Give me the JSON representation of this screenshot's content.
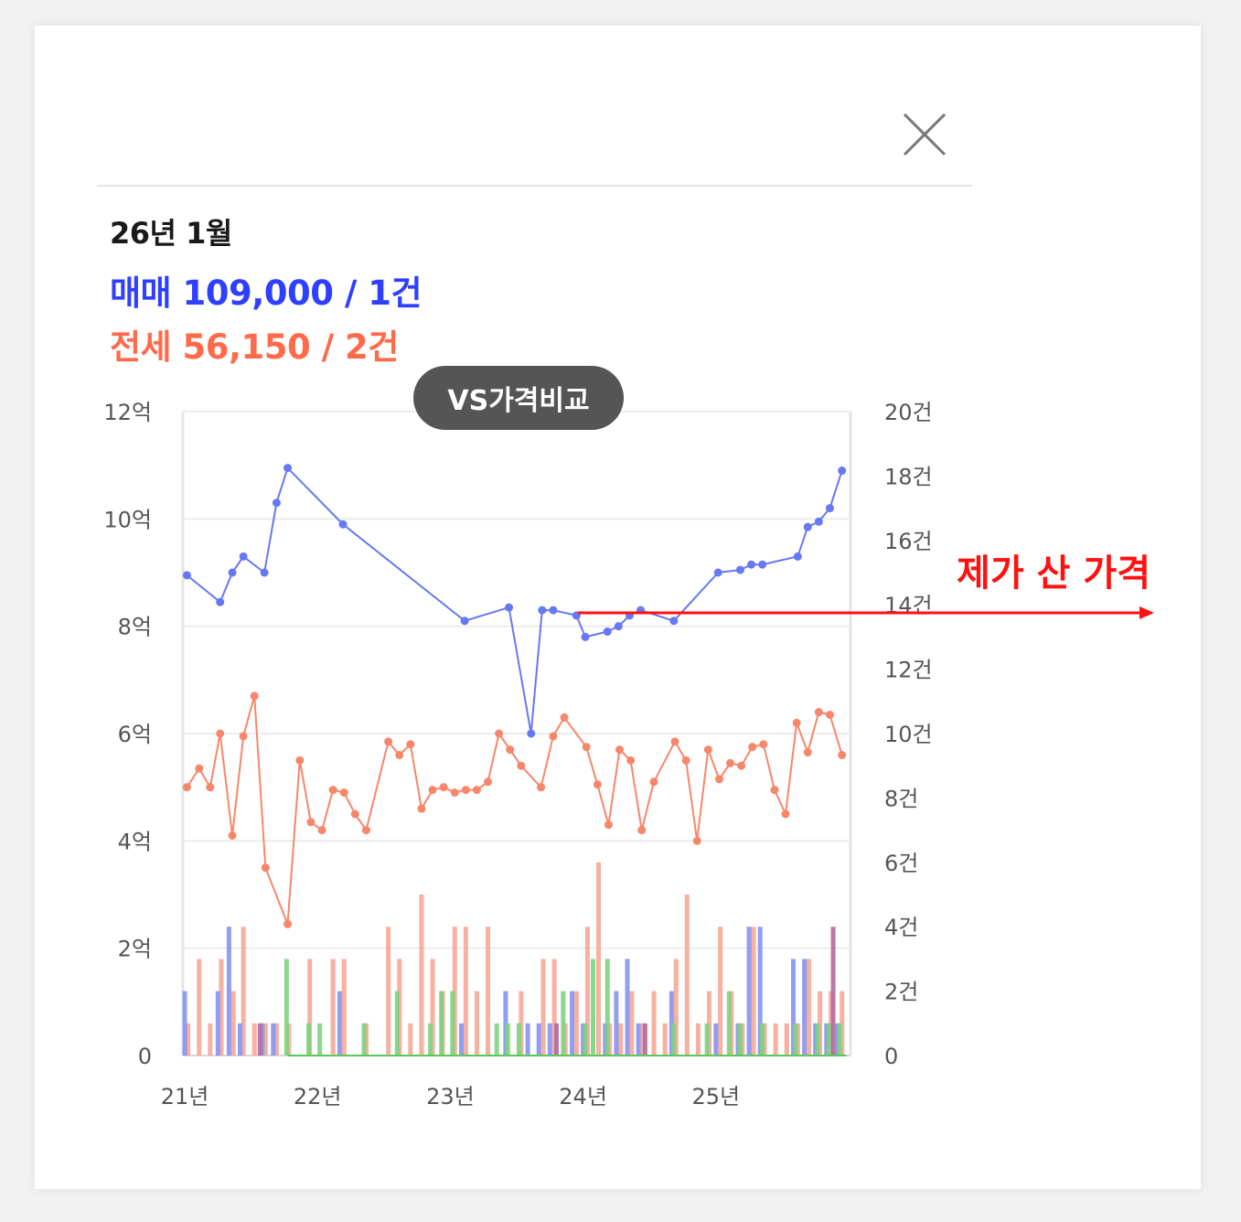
{
  "header": {
    "close_icon": "close-icon"
  },
  "summary": {
    "period": "26년 1월",
    "sale": "매매 109,000 / 1건",
    "jeonse": "전세 56,150 / 2건",
    "sale_color": "#2f3fff",
    "jeonse_color": "#ff6a4a"
  },
  "compare_button": {
    "label": "VS가격비교"
  },
  "annotation": {
    "label": "제가 산 가격",
    "color": "#ff1111",
    "price": 8.25
  },
  "chart_data": {
    "type": "line",
    "y_left": {
      "ticks": [
        "0",
        "2억",
        "4억",
        "6억",
        "8억",
        "10억",
        "12억"
      ],
      "range": [
        0,
        12
      ]
    },
    "y_right": {
      "ticks": [
        "0",
        "2건",
        "4건",
        "6건",
        "8건",
        "10건",
        "12건",
        "14건",
        "16건",
        "18건",
        "20건"
      ],
      "range": [
        0,
        20
      ]
    },
    "x_labels": [
      {
        "t": 0,
        "label": "21년"
      },
      {
        "t": 12,
        "label": "22년"
      },
      {
        "t": 24,
        "label": "23년"
      },
      {
        "t": 36,
        "label": "24년"
      },
      {
        "t": 48,
        "label": "25년"
      }
    ],
    "x_range": [
      0,
      60
    ],
    "grid": true,
    "series": [
      {
        "color": "#6678f5",
        "points": [
          [
            0.2,
            8.95
          ],
          [
            3.2,
            8.45
          ],
          [
            4.3,
            9.0
          ],
          [
            5.3,
            9.3
          ],
          [
            7.2,
            9.0
          ],
          [
            8.3,
            10.3
          ],
          [
            9.3,
            10.95
          ],
          [
            14.3,
            9.9
          ],
          [
            25.3,
            8.1
          ],
          [
            29.3,
            8.35
          ],
          [
            31.3,
            6.0
          ],
          [
            32.3,
            8.3
          ],
          [
            33.3,
            8.3
          ],
          [
            35.4,
            8.2
          ],
          [
            36.2,
            7.8
          ],
          [
            38.2,
            7.9
          ],
          [
            39.2,
            8.0
          ],
          [
            40.2,
            8.2
          ],
          [
            41.2,
            8.3
          ],
          [
            44.2,
            8.1
          ],
          [
            48.2,
            9.0
          ],
          [
            50.2,
            9.05
          ],
          [
            51.2,
            9.15
          ],
          [
            52.2,
            9.15
          ],
          [
            55.4,
            9.3
          ],
          [
            56.3,
            9.85
          ],
          [
            57.3,
            9.95
          ],
          [
            58.3,
            10.2
          ],
          [
            59.4,
            10.9
          ]
        ]
      },
      {
        "color": "#f7866a",
        "points": [
          [
            0.2,
            5.0
          ],
          [
            1.3,
            5.35
          ],
          [
            2.3,
            5.0
          ],
          [
            3.2,
            6.0
          ],
          [
            4.3,
            4.1
          ],
          [
            5.3,
            5.95
          ],
          [
            6.3,
            6.7
          ],
          [
            7.3,
            3.5
          ],
          [
            9.3,
            2.45
          ],
          [
            10.4,
            5.5
          ],
          [
            11.4,
            4.35
          ],
          [
            12.4,
            4.2
          ],
          [
            13.4,
            4.95
          ],
          [
            14.4,
            4.9
          ],
          [
            15.4,
            4.5
          ],
          [
            16.4,
            4.2
          ],
          [
            18.4,
            5.85
          ],
          [
            19.4,
            5.6
          ],
          [
            20.4,
            5.8
          ],
          [
            21.4,
            4.6
          ],
          [
            22.4,
            4.95
          ],
          [
            23.4,
            5.0
          ],
          [
            24.4,
            4.9
          ],
          [
            25.4,
            4.95
          ],
          [
            26.4,
            4.95
          ],
          [
            27.4,
            5.1
          ],
          [
            28.4,
            6.0
          ],
          [
            29.4,
            5.7
          ],
          [
            30.4,
            5.4
          ],
          [
            32.2,
            5.0
          ],
          [
            33.3,
            5.95
          ],
          [
            34.3,
            6.3
          ],
          [
            36.3,
            5.75
          ],
          [
            37.3,
            5.05
          ],
          [
            38.3,
            4.3
          ],
          [
            39.3,
            5.7
          ],
          [
            40.3,
            5.5
          ],
          [
            41.3,
            4.2
          ],
          [
            42.4,
            5.1
          ],
          [
            44.3,
            5.85
          ],
          [
            45.3,
            5.5
          ],
          [
            46.3,
            4.0
          ],
          [
            47.3,
            5.7
          ],
          [
            48.3,
            5.15
          ],
          [
            49.3,
            5.45
          ],
          [
            50.3,
            5.4
          ],
          [
            51.3,
            5.75
          ],
          [
            52.3,
            5.8
          ],
          [
            53.3,
            4.95
          ],
          [
            54.3,
            4.5
          ],
          [
            55.3,
            6.2
          ],
          [
            56.3,
            5.65
          ],
          [
            57.3,
            6.4
          ],
          [
            58.3,
            6.35
          ],
          [
            59.4,
            5.6
          ]
        ]
      },
      {
        "color": "#55cc55",
        "points": [
          [
            9.3,
            0
          ],
          [
            59.8,
            0
          ]
        ]
      }
    ],
    "bars": [
      {
        "color": "#f7a796",
        "values": [
          [
            0.3,
            1
          ],
          [
            1.3,
            3
          ],
          [
            2.3,
            1
          ],
          [
            3.3,
            3
          ],
          [
            4.4,
            2
          ],
          [
            5.3,
            4
          ],
          [
            6.3,
            1
          ],
          [
            7.3,
            1
          ],
          [
            8.3,
            1
          ],
          [
            9.4,
            1
          ],
          [
            11.3,
            3
          ],
          [
            13.4,
            3
          ],
          [
            14.4,
            3
          ],
          [
            16.4,
            1
          ],
          [
            18.4,
            4
          ],
          [
            19.4,
            3
          ],
          [
            20.4,
            1
          ],
          [
            21.4,
            5
          ],
          [
            22.4,
            3
          ],
          [
            23.3,
            2
          ],
          [
            24.4,
            4
          ],
          [
            25.4,
            4
          ],
          [
            26.4,
            2
          ],
          [
            27.4,
            4
          ],
          [
            30.4,
            2
          ],
          [
            32.4,
            3
          ],
          [
            33.4,
            3
          ],
          [
            34.4,
            1
          ],
          [
            35.4,
            2
          ],
          [
            36.4,
            4
          ],
          [
            37.4,
            6
          ],
          [
            38.4,
            1
          ],
          [
            39.4,
            1
          ],
          [
            40.4,
            2
          ],
          [
            41.4,
            1
          ],
          [
            42.4,
            2
          ],
          [
            43.4,
            1
          ],
          [
            44.4,
            3
          ],
          [
            45.4,
            5
          ],
          [
            46.4,
            1
          ],
          [
            47.4,
            2
          ],
          [
            48.4,
            4
          ],
          [
            49.4,
            2
          ],
          [
            50.4,
            1
          ],
          [
            51.4,
            4
          ],
          [
            52.4,
            1
          ],
          [
            53.4,
            1
          ],
          [
            54.4,
            1
          ],
          [
            55.4,
            1
          ],
          [
            56.4,
            3
          ],
          [
            57.4,
            2
          ],
          [
            58.4,
            2
          ],
          [
            59.4,
            2
          ]
        ]
      },
      {
        "color": "#8493f2",
        "values": [
          [
            0.0,
            2
          ],
          [
            3.0,
            2
          ],
          [
            4.0,
            4
          ],
          [
            5.0,
            1
          ],
          [
            7.0,
            1
          ],
          [
            8.0,
            1
          ],
          [
            14.0,
            2
          ],
          [
            25.0,
            1
          ],
          [
            29.0,
            2
          ],
          [
            31.0,
            1
          ],
          [
            32.0,
            1
          ],
          [
            33.0,
            1
          ],
          [
            35.0,
            2
          ],
          [
            36.0,
            1
          ],
          [
            38.0,
            1
          ],
          [
            39.0,
            2
          ],
          [
            40.0,
            3
          ],
          [
            41.0,
            1
          ],
          [
            44.0,
            2
          ],
          [
            48.0,
            1
          ],
          [
            50.0,
            1
          ],
          [
            51.0,
            4
          ],
          [
            52.0,
            4
          ],
          [
            55.0,
            3
          ],
          [
            56.0,
            3
          ],
          [
            57.0,
            1
          ],
          [
            58.0,
            1
          ],
          [
            59.0,
            1
          ]
        ]
      },
      {
        "color": "#7ed37e",
        "values": [
          [
            9.2,
            3
          ],
          [
            11.2,
            1
          ],
          [
            12.2,
            1
          ],
          [
            16.2,
            1
          ],
          [
            19.2,
            2
          ],
          [
            22.2,
            1
          ],
          [
            23.2,
            2
          ],
          [
            24.2,
            2
          ],
          [
            28.2,
            1
          ],
          [
            29.2,
            1
          ],
          [
            30.2,
            1
          ],
          [
            34.2,
            2
          ],
          [
            36.2,
            1
          ],
          [
            36.9,
            3
          ],
          [
            38.2,
            3
          ],
          [
            44.2,
            1
          ],
          [
            47.2,
            1
          ],
          [
            49.2,
            2
          ],
          [
            50.2,
            1
          ],
          [
            52.2,
            1
          ],
          [
            55.2,
            1
          ],
          [
            57.2,
            1
          ],
          [
            58.2,
            1
          ],
          [
            59.2,
            1
          ]
        ]
      },
      {
        "color": "#b46aa0",
        "values": [
          [
            6.8,
            1
          ],
          [
            33.6,
            1
          ],
          [
            41.6,
            1
          ],
          [
            58.6,
            4
          ]
        ]
      }
    ]
  }
}
